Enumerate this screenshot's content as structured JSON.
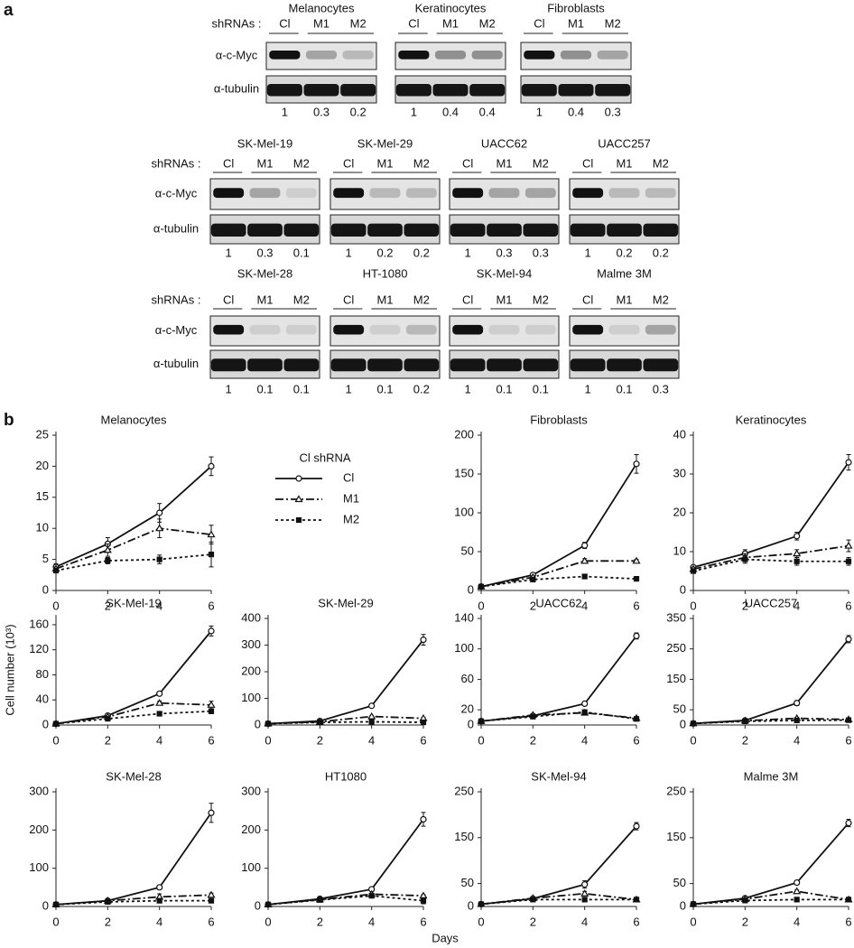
{
  "blots": {
    "label": "a",
    "shrna_label": "shRNAs :",
    "lanes": [
      "Cl",
      "M1",
      "M2"
    ],
    "rows": [
      "α-c-Myc",
      "α-tubulin"
    ],
    "groups": [
      {
        "title": "Melanocytes",
        "quant": [
          1,
          0.3,
          0.2
        ]
      },
      {
        "title": "Keratinocytes",
        "quant": [
          1,
          0.4,
          0.4
        ]
      },
      {
        "title": "Fibroblasts",
        "quant": [
          1,
          0.4,
          0.3
        ]
      },
      {
        "title": "SK-Mel-19",
        "quant": [
          1,
          0.3,
          0.1
        ]
      },
      {
        "title": "SK-Mel-29",
        "quant": [
          1,
          0.2,
          0.2
        ]
      },
      {
        "title": "UACC62",
        "quant": [
          1,
          0.3,
          0.3
        ]
      },
      {
        "title": "UACC257",
        "quant": [
          1,
          0.2,
          0.2
        ]
      },
      {
        "title": "SK-Mel-28",
        "quant": [
          1,
          0.1,
          0.1
        ]
      },
      {
        "title": "HT-1080",
        "quant": [
          1,
          0.1,
          0.2
        ]
      },
      {
        "title": "SK-Mel-94",
        "quant": [
          1,
          0.1,
          0.1
        ]
      },
      {
        "title": "Malme 3M",
        "quant": [
          1,
          0.1,
          0.3
        ]
      }
    ]
  },
  "growth": {
    "label": "b",
    "ylabel": "Cell number (10³)",
    "xlabel": "Days",
    "legend_title": "Cl shRNA",
    "legend": [
      {
        "name": "Cl",
        "marker": "circle",
        "dash": "solid"
      },
      {
        "name": "M1",
        "marker": "triangle",
        "dash": "dashdot"
      },
      {
        "name": "M2",
        "marker": "square",
        "dash": "dotted"
      }
    ]
  },
  "chart_data": [
    {
      "type": "line",
      "title": "Melanocytes",
      "x": [
        0,
        2,
        4,
        6
      ],
      "xlim": [
        0,
        6
      ],
      "xticks": [
        0,
        2,
        4,
        6
      ],
      "ylim": [
        0,
        25
      ],
      "yticks": [
        0,
        5,
        10,
        15,
        20,
        25
      ],
      "series": [
        {
          "values": [
            3.8,
            7.5,
            12.5,
            20
          ],
          "errors": [
            0.5,
            1,
            1.5,
            1.5
          ]
        },
        {
          "values": [
            3.5,
            6.5,
            10,
            9
          ],
          "errors": [
            0.3,
            1,
            1.5,
            1.5
          ]
        },
        {
          "values": [
            3.2,
            4.8,
            5,
            5.8
          ],
          "errors": [
            0.3,
            0.5,
            0.7,
            2
          ]
        }
      ]
    },
    {
      "type": "line",
      "title": "Fibroblasts",
      "x": [
        0,
        2,
        4,
        6
      ],
      "xlim": [
        0,
        6
      ],
      "xticks": [
        0,
        2,
        4,
        6
      ],
      "ylim": [
        0,
        200
      ],
      "yticks": [
        0,
        50,
        100,
        150,
        200
      ],
      "series": [
        {
          "values": [
            5,
            20,
            58,
            163
          ],
          "errors": [
            1,
            2,
            4,
            12
          ]
        },
        {
          "values": [
            5,
            17,
            38,
            38
          ],
          "errors": [
            1,
            2,
            3,
            2
          ]
        },
        {
          "values": [
            5,
            14,
            18,
            15
          ],
          "errors": [
            1,
            1,
            2,
            2
          ]
        }
      ]
    },
    {
      "type": "line",
      "title": "Keratinocytes",
      "x": [
        0,
        2,
        4,
        6
      ],
      "xlim": [
        0,
        6
      ],
      "xticks": [
        0,
        2,
        4,
        6
      ],
      "ylim": [
        0,
        40
      ],
      "yticks": [
        0,
        10,
        20,
        30,
        40
      ],
      "series": [
        {
          "values": [
            6,
            9.5,
            14,
            33
          ],
          "errors": [
            0.5,
            1,
            1,
            2
          ]
        },
        {
          "values": [
            5.5,
            8.5,
            9.5,
            11.5
          ],
          "errors": [
            0.5,
            1,
            1,
            1.5
          ]
        },
        {
          "values": [
            5,
            8,
            7.5,
            7.5
          ],
          "errors": [
            0.5,
            1,
            1,
            1
          ]
        }
      ]
    },
    {
      "type": "line",
      "title": "SK-Mel-19",
      "x": [
        0,
        2,
        4,
        6
      ],
      "xlim": [
        0,
        6
      ],
      "xticks": [
        0,
        2,
        4,
        6
      ],
      "ylim": [
        0,
        170
      ],
      "yticks": [
        0,
        40,
        80,
        120,
        160
      ],
      "series": [
        {
          "values": [
            2,
            15,
            50,
            150
          ],
          "errors": [
            1,
            2,
            3,
            8
          ]
        },
        {
          "values": [
            2,
            13,
            35,
            32
          ],
          "errors": [
            1,
            2,
            3,
            6
          ]
        },
        {
          "values": [
            2,
            10,
            18,
            22
          ],
          "errors": [
            1,
            1,
            2,
            4
          ]
        }
      ]
    },
    {
      "type": "line",
      "title": "SK-Mel-29",
      "x": [
        0,
        2,
        4,
        6
      ],
      "xlim": [
        0,
        6
      ],
      "xticks": [
        0,
        2,
        4,
        6
      ],
      "ylim": [
        0,
        400
      ],
      "yticks": [
        0,
        100,
        200,
        300,
        400
      ],
      "series": [
        {
          "values": [
            5,
            15,
            72,
            320
          ],
          "errors": [
            2,
            3,
            5,
            20
          ]
        },
        {
          "values": [
            5,
            12,
            32,
            25
          ],
          "errors": [
            2,
            2,
            3,
            3
          ]
        },
        {
          "values": [
            5,
            10,
            12,
            10
          ],
          "errors": [
            1,
            1,
            2,
            2
          ]
        }
      ]
    },
    {
      "type": "line",
      "title": "UACC62",
      "x": [
        0,
        2,
        4,
        6
      ],
      "xlim": [
        0,
        6
      ],
      "xticks": [
        0,
        2,
        4,
        6
      ],
      "ylim": [
        0,
        140
      ],
      "yticks": [
        0,
        20,
        60,
        100,
        140
      ],
      "series": [
        {
          "values": [
            5,
            12,
            28,
            117
          ],
          "errors": [
            1,
            2,
            2,
            4
          ]
        },
        {
          "values": [
            5,
            13,
            16,
            9
          ],
          "errors": [
            1,
            1,
            1,
            1
          ]
        },
        {
          "values": [
            5,
            11,
            17,
            8
          ],
          "errors": [
            1,
            1,
            1,
            1
          ]
        }
      ]
    },
    {
      "type": "line",
      "title": "UACC257",
      "x": [
        0,
        2,
        4,
        6
      ],
      "xlim": [
        0,
        6
      ],
      "xticks": [
        0,
        2,
        4,
        6
      ],
      "ylim": [
        0,
        350
      ],
      "yticks": [
        0,
        50,
        150,
        250,
        350
      ],
      "series": [
        {
          "values": [
            5,
            15,
            72,
            282
          ],
          "errors": [
            2,
            3,
            8,
            12
          ]
        },
        {
          "values": [
            5,
            14,
            22,
            18
          ],
          "errors": [
            1,
            2,
            3,
            2
          ]
        },
        {
          "values": [
            5,
            12,
            15,
            16
          ],
          "errors": [
            1,
            1,
            2,
            2
          ]
        }
      ]
    },
    {
      "type": "line",
      "title": "SK-Mel-28",
      "x": [
        0,
        2,
        4,
        6
      ],
      "xlim": [
        0,
        6
      ],
      "xticks": [
        0,
        2,
        4,
        6
      ],
      "ylim": [
        0,
        300
      ],
      "yticks": [
        0,
        100,
        200,
        300
      ],
      "series": [
        {
          "values": [
            5,
            15,
            50,
            245
          ],
          "errors": [
            2,
            2,
            4,
            25
          ]
        },
        {
          "values": [
            5,
            15,
            25,
            30
          ],
          "errors": [
            1,
            2,
            8,
            5
          ]
        },
        {
          "values": [
            5,
            12,
            15,
            15
          ],
          "errors": [
            1,
            1,
            2,
            2
          ]
        }
      ]
    },
    {
      "type": "line",
      "title": "HT1080",
      "x": [
        0,
        2,
        4,
        6
      ],
      "xlim": [
        0,
        6
      ],
      "xticks": [
        0,
        2,
        4,
        6
      ],
      "ylim": [
        0,
        300
      ],
      "yticks": [
        0,
        100,
        200,
        300
      ],
      "series": [
        {
          "values": [
            5,
            20,
            45,
            228
          ],
          "errors": [
            2,
            2,
            4,
            18
          ]
        },
        {
          "values": [
            5,
            18,
            32,
            28
          ],
          "errors": [
            1,
            2,
            3,
            3
          ]
        },
        {
          "values": [
            5,
            17,
            28,
            15
          ],
          "errors": [
            1,
            2,
            3,
            8
          ]
        }
      ]
    },
    {
      "type": "line",
      "title": "SK-Mel-94",
      "x": [
        0,
        2,
        4,
        6
      ],
      "xlim": [
        0,
        6
      ],
      "xticks": [
        0,
        2,
        4,
        6
      ],
      "ylim": [
        0,
        250
      ],
      "yticks": [
        0,
        50,
        150,
        250
      ],
      "series": [
        {
          "values": [
            5,
            17,
            48,
            175
          ],
          "errors": [
            2,
            3,
            8,
            8
          ]
        },
        {
          "values": [
            5,
            18,
            28,
            15
          ],
          "errors": [
            2,
            2,
            5,
            2
          ]
        },
        {
          "values": [
            5,
            15,
            15,
            15
          ],
          "errors": [
            1,
            1,
            2,
            1
          ]
        }
      ]
    },
    {
      "type": "line",
      "title": "Malme 3M",
      "x": [
        0,
        2,
        4,
        6
      ],
      "xlim": [
        0,
        6
      ],
      "xticks": [
        0,
        2,
        4,
        6
      ],
      "ylim": [
        0,
        250
      ],
      "yticks": [
        0,
        50,
        150,
        250
      ],
      "series": [
        {
          "values": [
            5,
            18,
            52,
            182
          ],
          "errors": [
            2,
            2,
            4,
            8
          ]
        },
        {
          "values": [
            5,
            16,
            33,
            15
          ],
          "errors": [
            1,
            2,
            3,
            2
          ]
        },
        {
          "values": [
            5,
            13,
            15,
            15
          ],
          "errors": [
            1,
            1,
            2,
            2
          ]
        }
      ]
    }
  ]
}
